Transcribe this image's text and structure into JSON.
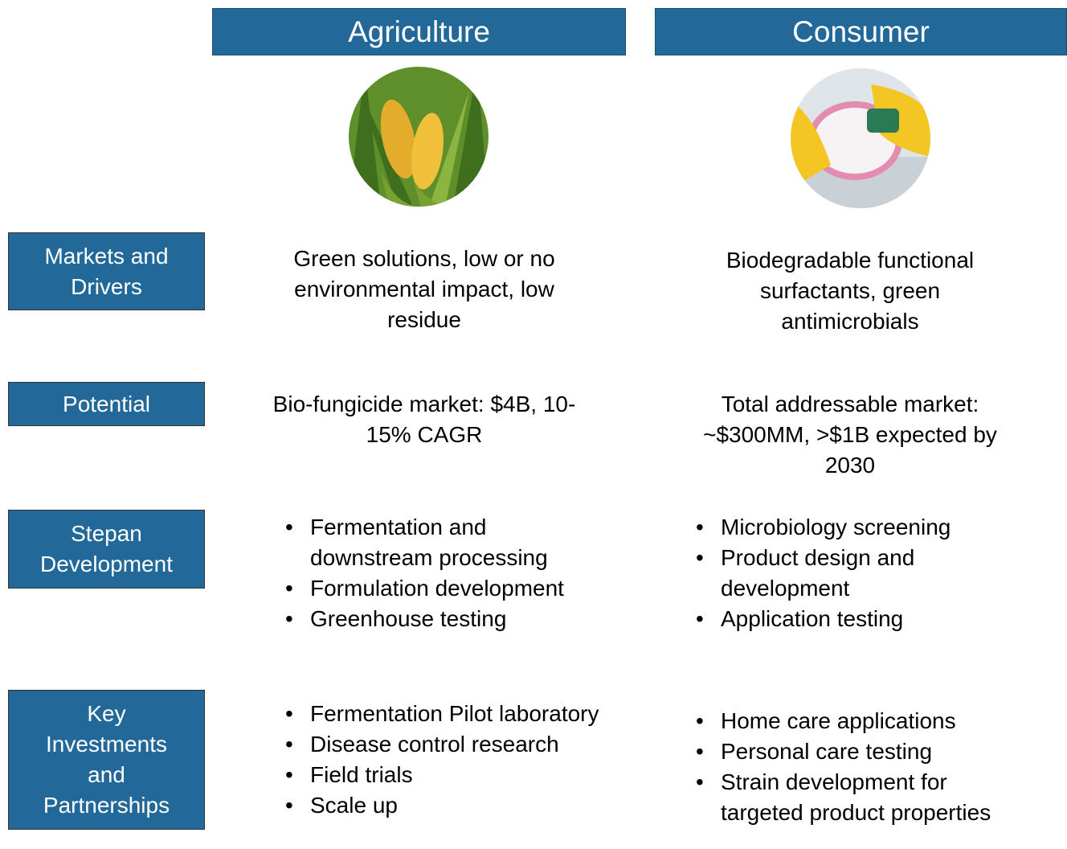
{
  "columns": [
    {
      "title": "Agriculture"
    },
    {
      "title": "Consumer"
    }
  ],
  "rows": [
    {
      "label": "Markets and Drivers",
      "cells": [
        {
          "text": "Green solutions, low or no environmental impact, low residue"
        },
        {
          "text": "Biodegradable functional surfactants, green antimicrobials"
        }
      ]
    },
    {
      "label": "Potential",
      "cells": [
        {
          "text": "Bio-fungicide market: $4B, 10-15% CAGR"
        },
        {
          "text": "Total addressable market: ~$300MM, >$1B expected by 2030"
        }
      ]
    },
    {
      "label": "Stepan Development",
      "cells": [
        {
          "items": [
            "Fermentation and downstream processing",
            "Formulation development",
            "Greenhouse testing"
          ]
        },
        {
          "items": [
            "Microbiology screening",
            "Product design and development",
            "Application testing"
          ]
        }
      ]
    },
    {
      "label": "Key Investments and Partnerships",
      "cells": [
        {
          "items": [
            "Fermentation Pilot laboratory",
            "Disease control research",
            "Field trials",
            "Scale up"
          ]
        },
        {
          "items": [
            "Home care applications",
            "Personal care testing",
            "Strain development for targeted product properties"
          ]
        }
      ]
    }
  ]
}
